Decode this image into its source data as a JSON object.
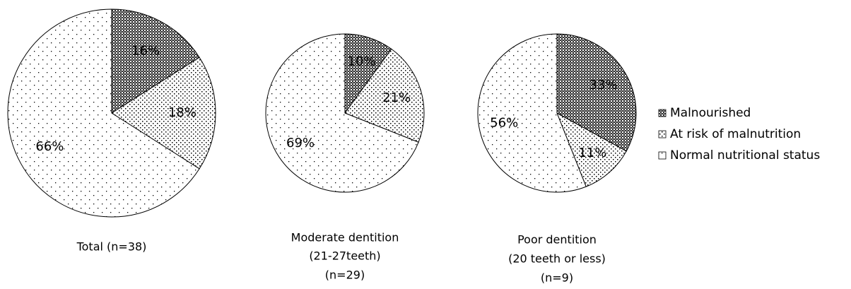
{
  "chart_data": [
    {
      "type": "pie",
      "title": [
        "Total (n=38)"
      ],
      "values": [
        16,
        18,
        66
      ],
      "value_labels": [
        "16%",
        "18%",
        "66%"
      ]
    },
    {
      "type": "pie",
      "title": [
        "Moderate dentition",
        "(21-27teeth)",
        "(n=29)"
      ],
      "values": [
        10,
        21,
        69
      ],
      "value_labels": [
        "10%",
        "21%",
        "69%"
      ]
    },
    {
      "type": "pie",
      "title": [
        "Poor dentition",
        "(20 teeth or less)",
        "(n=9)"
      ],
      "values": [
        33,
        11,
        56
      ],
      "value_labels": [
        "33%",
        "11%",
        "56%"
      ]
    }
  ],
  "legend": [
    "Malnourished",
    "At risk of malnutrition",
    "Normal nutritional status"
  ]
}
